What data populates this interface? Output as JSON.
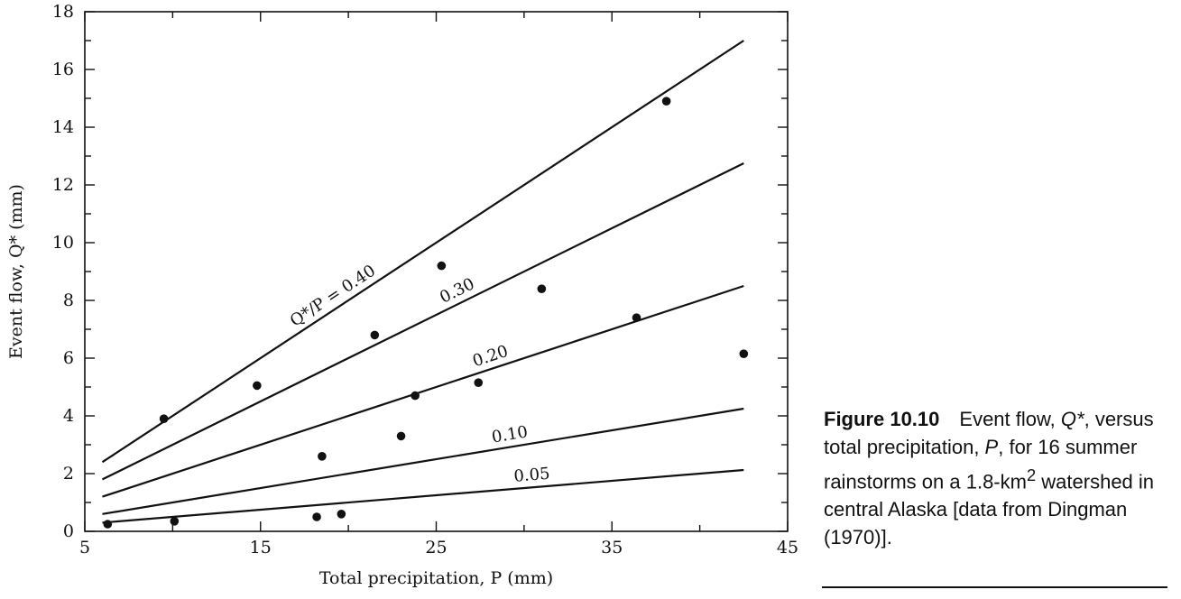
{
  "chart_data": {
    "type": "scatter",
    "title": "",
    "xlabel": "Total precipitation, P (mm)",
    "ylabel": "Event flow, Q* (mm)",
    "xlim": [
      5,
      45
    ],
    "ylim": [
      0,
      18
    ],
    "x_ticks": [
      5,
      15,
      25,
      35,
      45
    ],
    "y_ticks": [
      0,
      2,
      4,
      6,
      8,
      10,
      12,
      14,
      16,
      18
    ],
    "grid": false,
    "points": [
      {
        "x": 6.3,
        "y": 0.25
      },
      {
        "x": 9.5,
        "y": 3.9
      },
      {
        "x": 10.1,
        "y": 0.35
      },
      {
        "x": 14.8,
        "y": 5.05
      },
      {
        "x": 18.2,
        "y": 0.5
      },
      {
        "x": 18.5,
        "y": 2.6
      },
      {
        "x": 19.6,
        "y": 0.6
      },
      {
        "x": 21.5,
        "y": 6.8
      },
      {
        "x": 23.0,
        "y": 3.3
      },
      {
        "x": 23.8,
        "y": 4.7
      },
      {
        "x": 25.3,
        "y": 9.2
      },
      {
        "x": 27.4,
        "y": 5.15
      },
      {
        "x": 31.0,
        "y": 8.4
      },
      {
        "x": 36.4,
        "y": 7.4
      },
      {
        "x": 38.1,
        "y": 14.9
      },
      {
        "x": 42.5,
        "y": 6.15
      }
    ],
    "ratio_lines": [
      {
        "ratio": 0.4,
        "label": "Q*/P = 0.40",
        "x_range": [
          6.0,
          42.5
        ],
        "label_at": 19.5
      },
      {
        "ratio": 0.3,
        "label": "0.30",
        "x_range": [
          6.0,
          42.5
        ],
        "label_at": 26.5
      },
      {
        "ratio": 0.2,
        "label": "0.20",
        "x_range": [
          6.0,
          42.5
        ],
        "label_at": 28.3
      },
      {
        "ratio": 0.1,
        "label": "0.10",
        "x_range": [
          6.0,
          42.5
        ],
        "label_at": 29.3
      },
      {
        "ratio": 0.05,
        "label": "0.05",
        "x_range": [
          6.0,
          42.5
        ],
        "label_at": 30.5
      }
    ]
  },
  "caption": {
    "figure_number": "Figure 10.10",
    "text_before_q": "Event flow, ",
    "q": "Q*",
    "text_after_q": ", versus total precipitation, ",
    "p": "P",
    "text_after_p": ", for 16 summer rainstorms on a 1.8-km",
    "superscript": "2",
    "text_after_sup": " watershed in central Alaska [data from Dingman (1970)]."
  }
}
